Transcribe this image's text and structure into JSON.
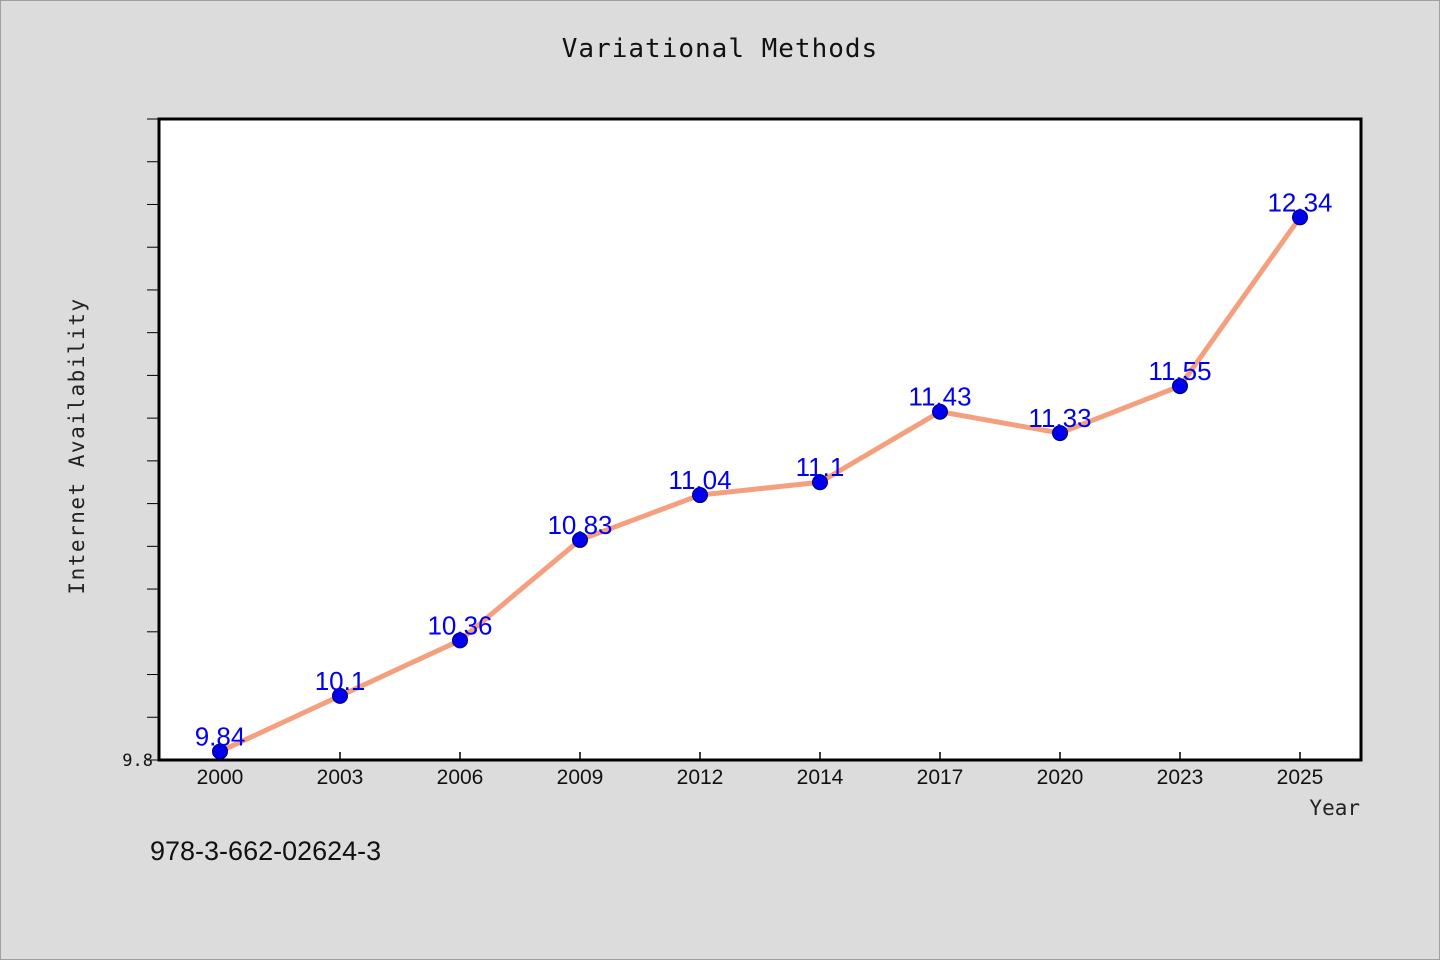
{
  "colors": {
    "background": "#dcdcdc",
    "plot_background": "#ffffff",
    "line": "#f4a07e",
    "marker": "#0000ee",
    "data_label": "#0000ee"
  },
  "footnote": "978-3-662-02624-3",
  "chart_data": {
    "type": "line",
    "title": "Variational Methods",
    "xlabel": "Year",
    "ylabel": "Internet Availability",
    "categories": [
      "2000",
      "2003",
      "2006",
      "2009",
      "2012",
      "2014",
      "2017",
      "2020",
      "2023",
      "2025"
    ],
    "series": [
      {
        "values": [
          9.84,
          10.1,
          10.36,
          10.83,
          11.04,
          11.1,
          11.43,
          11.33,
          11.55,
          12.34
        ]
      }
    ],
    "data_labels": [
      "9.84",
      "10.1",
      "10.36",
      "10.83",
      "11.04",
      "11.1",
      "11.43",
      "11.33",
      "11.55",
      "12.34"
    ],
    "ylim": [
      9.8,
      12.8
    ],
    "y_tick_labels": [
      "9.8"
    ],
    "grid": false,
    "legend": "none"
  }
}
